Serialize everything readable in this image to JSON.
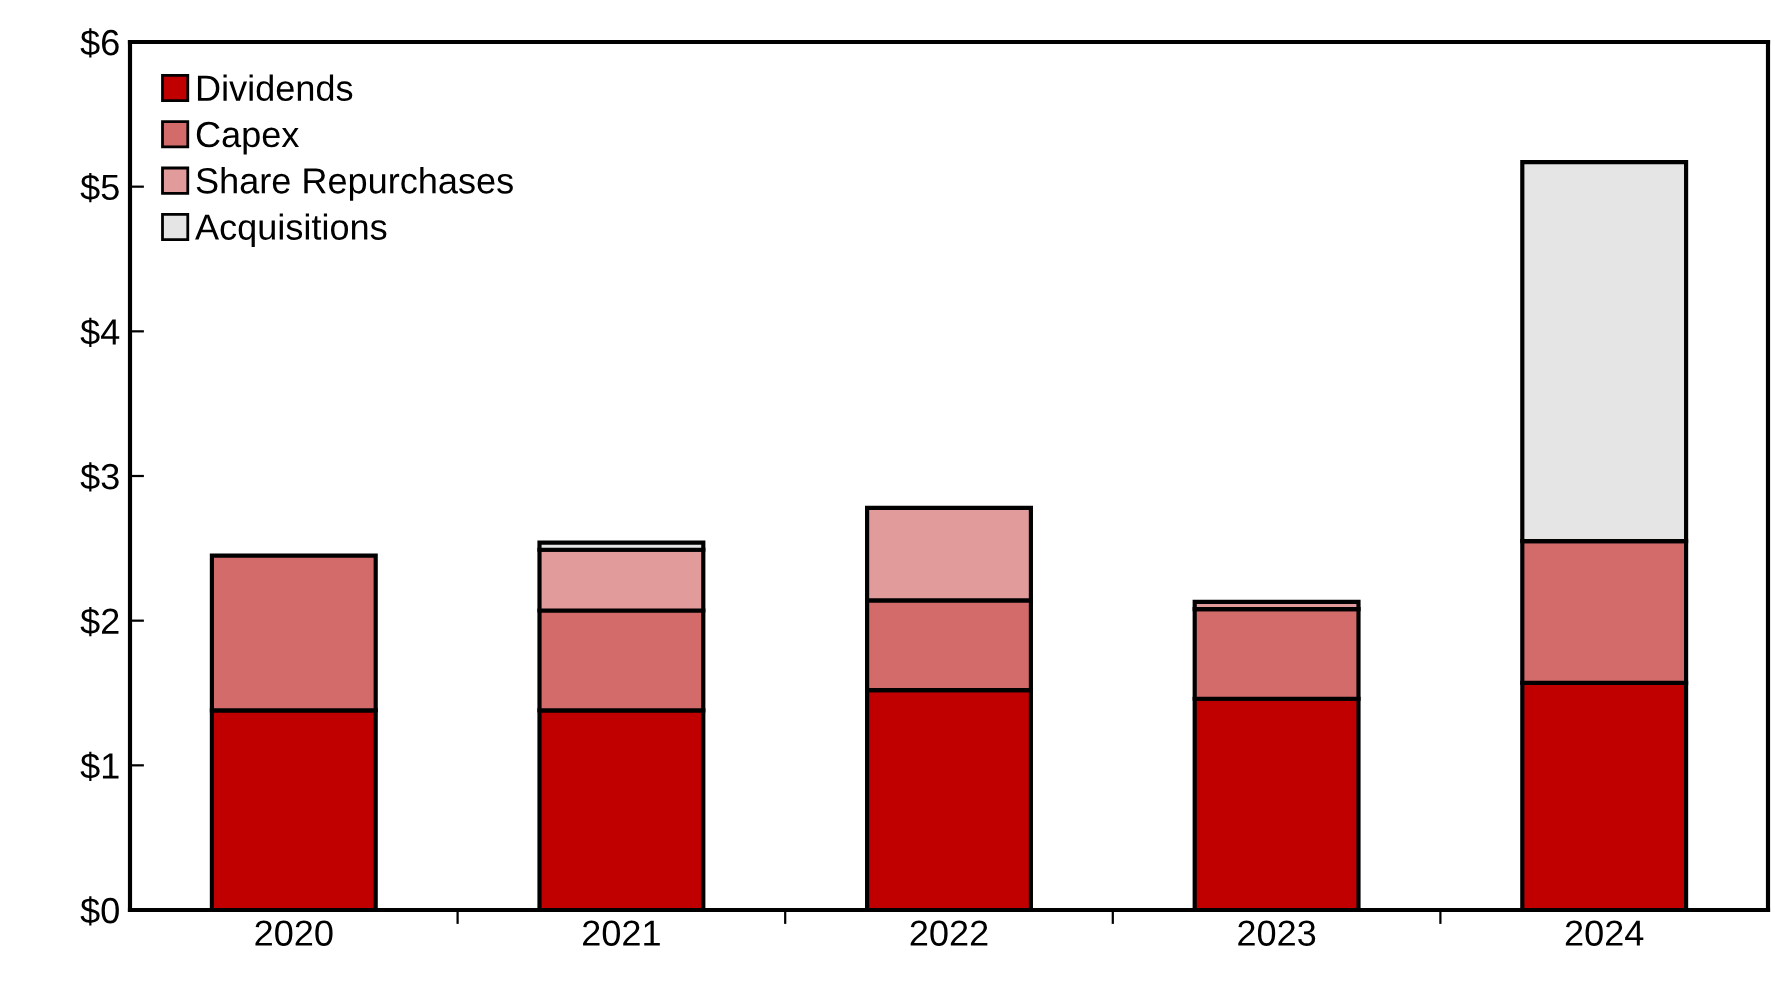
{
  "chart_data": {
    "type": "bar",
    "stacked": true,
    "categories": [
      "2020",
      "2021",
      "2022",
      "2023",
      "2024"
    ],
    "series": [
      {
        "name": "Dividends",
        "color": "#c00000",
        "values": [
          1.38,
          1.38,
          1.52,
          1.46,
          1.57
        ]
      },
      {
        "name": "Capex",
        "color": "#d26b6a",
        "values": [
          1.07,
          0.69,
          0.62,
          0.62,
          0.98
        ]
      },
      {
        "name": "Share Repurchases",
        "color": "#e19b9a",
        "values": [
          null,
          0.42,
          0.64,
          0.05,
          null
        ]
      },
      {
        "name": "Acquisitions",
        "color": "#e5e5e5",
        "values": [
          null,
          0.05,
          null,
          null,
          2.62
        ]
      }
    ],
    "ylim": [
      0,
      6
    ],
    "yticks": [
      {
        "value": 0,
        "label": "$0"
      },
      {
        "value": 1,
        "label": "$1"
      },
      {
        "value": 2,
        "label": "$2"
      },
      {
        "value": 3,
        "label": "$3"
      },
      {
        "value": 4,
        "label": "$4"
      },
      {
        "value": 5,
        "label": "$5"
      },
      {
        "value": 6,
        "label": "$6"
      }
    ],
    "grid": false,
    "legend": "top left"
  }
}
